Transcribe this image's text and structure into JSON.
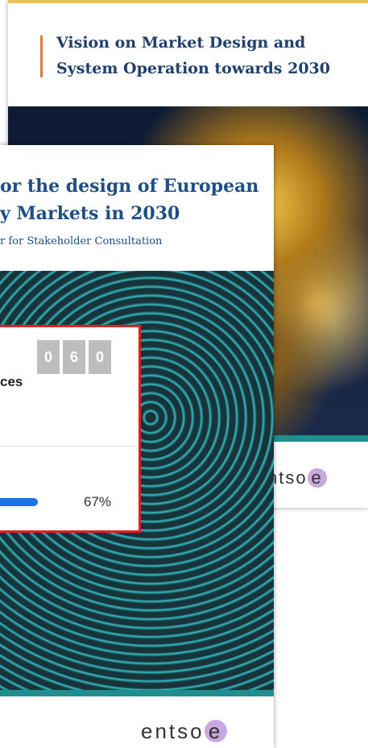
{
  "back_cover": {
    "title_line1": "Vision on Market Design and",
    "title_line2": "System Operation towards 2030",
    "logo_text": "ntso",
    "logo_mark": "e"
  },
  "front_cover": {
    "title_line1": "or the design of European",
    "title_line2": "y Markets in 2030",
    "subtitle": "r for Stakeholder Consultation",
    "logo_text": "entso",
    "logo_mark": "e"
  },
  "widget": {
    "digits": [
      "0",
      "6",
      "0"
    ],
    "label": "ces",
    "progress": {
      "value": 67,
      "label": "67%"
    }
  }
}
